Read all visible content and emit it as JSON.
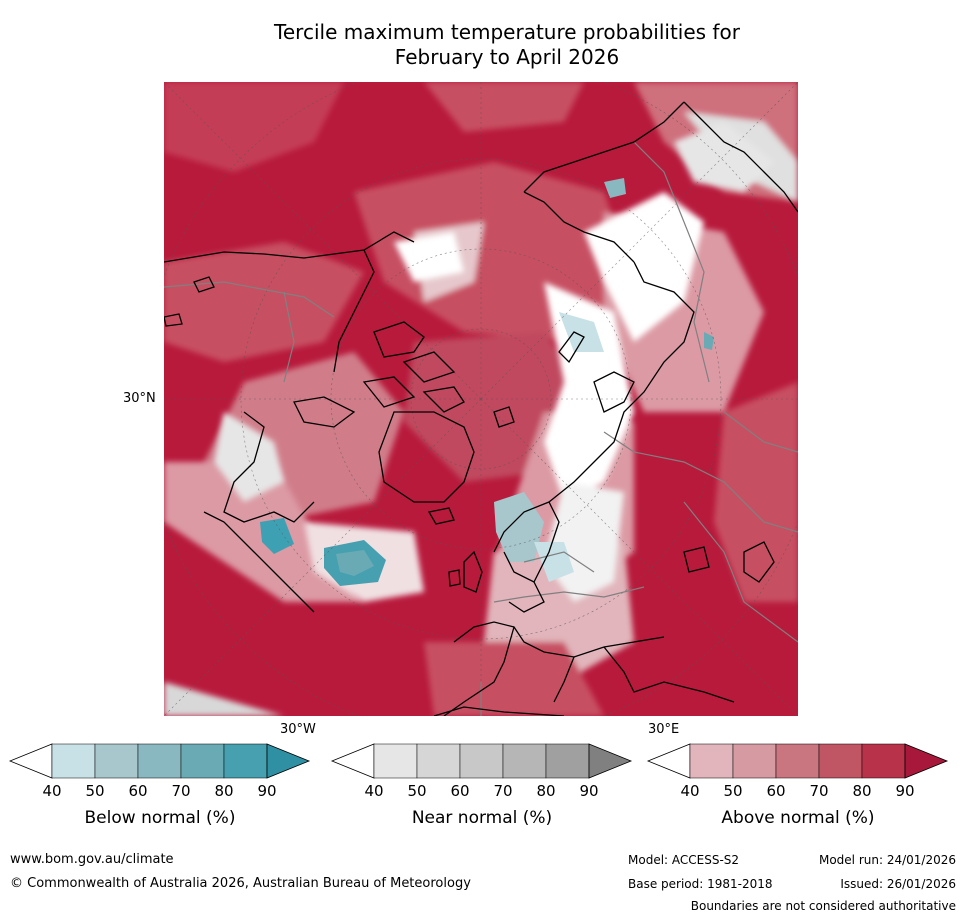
{
  "title": {
    "line1": "Tercile maximum temperature probabilities for",
    "line2": "February to April 2026"
  },
  "map": {
    "lat_label": "30°N",
    "lon_labels": [
      "30°W",
      "30°E"
    ]
  },
  "legends": [
    {
      "title": "Below normal (%)",
      "ticks": [
        "40",
        "50",
        "60",
        "70",
        "80",
        "90"
      ],
      "colors": [
        "#ffffff",
        "#c8e1e6",
        "#a7c7cc",
        "#8ab8c0",
        "#6aaab5",
        "#46a0b0",
        "#2f8fa3"
      ]
    },
    {
      "title": "Near normal (%)",
      "ticks": [
        "40",
        "50",
        "60",
        "70",
        "80",
        "90"
      ],
      "colors": [
        "#ffffff",
        "#e6e6e6",
        "#d6d6d6",
        "#c8c8c8",
        "#b6b6b6",
        "#a0a0a0",
        "#808080"
      ]
    },
    {
      "title": "Above normal (%)",
      "ticks": [
        "40",
        "50",
        "60",
        "70",
        "80",
        "90"
      ],
      "colors": [
        "#ffffff",
        "#e1b5bb",
        "#d69aa3",
        "#c97680",
        "#c05564",
        "#b8334a",
        "#a8183a"
      ]
    }
  ],
  "footer": {
    "url": "www.bom.gov.au/climate",
    "copyright": "© Commonwealth of Australia 2026, Australian Bureau of Meteorology",
    "model": "Model: ACCESS-S2",
    "model_run": "Model run: 24/01/2026",
    "base_period": "Base period: 1981-2018",
    "issued": "Issued: 26/01/2026",
    "boundaries": "Boundaries are not considered authoritative"
  },
  "colors": {
    "above_dark": "#b81a3c",
    "above_mid": "#c75062",
    "above_light": "#dc9aa4",
    "near_light": "#dcdcdc",
    "below_light": "#c8e1e6",
    "below_dark": "#3ea1b3",
    "coast": "#000000",
    "border": "#808080"
  }
}
